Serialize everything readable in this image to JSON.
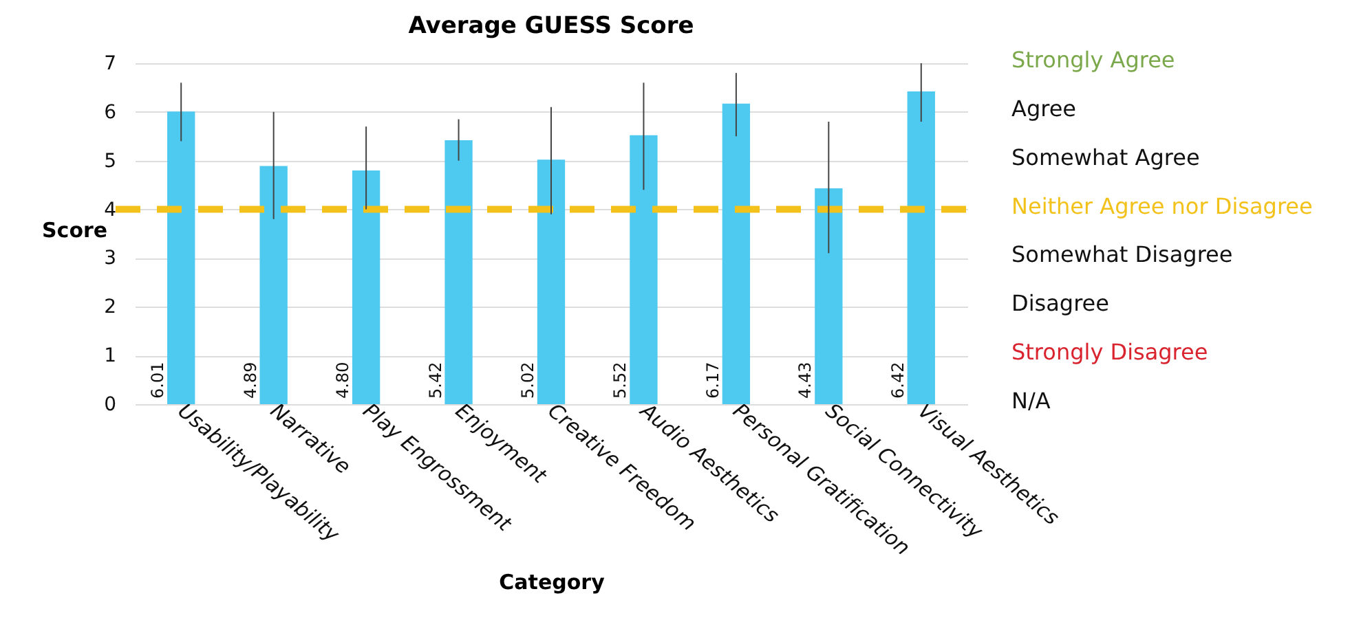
{
  "chart_data": {
    "type": "bar",
    "title": "Average GUESS Score",
    "xlabel": "Category",
    "ylabel": "Score",
    "categories": [
      "Usability/Playability",
      "Narrative",
      "Play Engrossment",
      "Enjoyment",
      "Creative Freedom",
      "Audio Aesthetics",
      "Personal Gratification",
      "Social Connectivity",
      "Visual Aesthetics"
    ],
    "values": [
      6.01,
      4.89,
      4.8,
      5.42,
      5.02,
      5.52,
      6.17,
      4.43,
      6.42
    ],
    "errors": [
      [
        5.4,
        6.6
      ],
      [
        3.8,
        6.0
      ],
      [
        4.0,
        5.7
      ],
      [
        5.0,
        5.85
      ],
      [
        3.9,
        6.1
      ],
      [
        4.4,
        6.6
      ],
      [
        5.5,
        6.8
      ],
      [
        3.1,
        5.8
      ],
      [
        5.8,
        7.0
      ]
    ],
    "color": "#4ec9f0",
    "value_labels": [
      "6.01",
      "4.89",
      "4.80",
      "5.42",
      "5.02",
      "5.52",
      "6.17",
      "4.43",
      "6.42"
    ],
    "ylim": [
      0,
      7
    ],
    "yticks": [
      0,
      1,
      2,
      3,
      4,
      5,
      6,
      7
    ],
    "grid": "y",
    "ref_lines": [
      {
        "axis": "y",
        "value": 4,
        "color": "#f2c21b",
        "line_style": "dashed"
      }
    ],
    "annotations": [
      "Strongly Agree",
      "Agree",
      "Somewhat Agree",
      "Neither Agree nor Disagree",
      "Somewhat Disagree",
      "Disagree",
      "Strongly Disagree",
      "N/A"
    ]
  }
}
